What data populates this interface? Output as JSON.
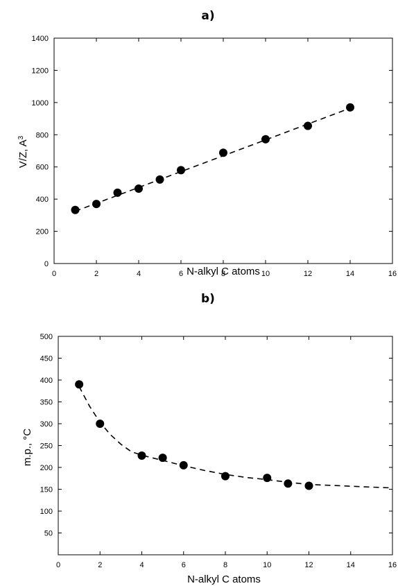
{
  "chart_data": [
    {
      "type": "scatter",
      "panel_label": "a)",
      "title": "",
      "xlabel": "N-alkyl C atoms",
      "ylabel_main": "V/Z, A",
      "ylabel_sup": "3",
      "xlim": [
        0,
        16
      ],
      "ylim": [
        0,
        1400
      ],
      "x_ticks": [
        0,
        2,
        4,
        6,
        8,
        10,
        12,
        14,
        16
      ],
      "y_ticks": [
        0,
        200,
        400,
        600,
        800,
        1000,
        1200,
        1400
      ],
      "x_tick_labels": [
        "0",
        "2",
        "4",
        "6",
        "8",
        "10",
        "12",
        "14",
        "16"
      ],
      "y_tick_labels": [
        "0",
        "200",
        "400",
        "600",
        "800",
        "1000",
        "1200",
        "1400"
      ],
      "points": [
        {
          "x": 1,
          "y": 333
        },
        {
          "x": 2,
          "y": 370
        },
        {
          "x": 3,
          "y": 440
        },
        {
          "x": 4,
          "y": 465
        },
        {
          "x": 5,
          "y": 522
        },
        {
          "x": 6,
          "y": 580
        },
        {
          "x": 8,
          "y": 688
        },
        {
          "x": 10,
          "y": 772
        },
        {
          "x": 12,
          "y": 855
        },
        {
          "x": 14,
          "y": 970
        }
      ],
      "fit": {
        "style": "dashed",
        "x": [
          1,
          14
        ],
        "y": [
          325,
          965
        ]
      },
      "grid": false,
      "legend": "none"
    },
    {
      "type": "scatter",
      "panel_label": "b)",
      "title": "",
      "xlabel": "N-alkyl C atoms",
      "ylabel": "m.p., °C",
      "xlim": [
        0,
        16
      ],
      "ylim": [
        0,
        500
      ],
      "x_ticks": [
        0,
        2,
        4,
        6,
        8,
        10,
        12,
        14,
        16
      ],
      "y_ticks": [
        50,
        100,
        150,
        200,
        250,
        300,
        350,
        400,
        450,
        500
      ],
      "x_tick_labels": [
        "0",
        "2",
        "4",
        "6",
        "8",
        "10",
        "12",
        "14",
        "16"
      ],
      "y_tick_labels": [
        "50",
        "100",
        "150",
        "200",
        "250",
        "300",
        "350",
        "400",
        "450",
        "500"
      ],
      "points": [
        {
          "x": 1,
          "y": 390
        },
        {
          "x": 2,
          "y": 300
        },
        {
          "x": 4,
          "y": 227
        },
        {
          "x": 5,
          "y": 222
        },
        {
          "x": 6,
          "y": 205
        },
        {
          "x": 8,
          "y": 180
        },
        {
          "x": 10,
          "y": 176
        },
        {
          "x": 11,
          "y": 163
        },
        {
          "x": 12,
          "y": 158
        }
      ],
      "fit": {
        "style": "dashed",
        "x": [
          1,
          1.5,
          2,
          2.5,
          3,
          3.5,
          4,
          5,
          6,
          7,
          8,
          9,
          10,
          11,
          12,
          13,
          14,
          15,
          16
        ],
        "y": [
          385,
          340,
          303,
          275,
          253,
          236,
          228,
          216,
          204,
          193,
          184,
          177,
          172,
          166,
          161,
          159,
          157,
          155,
          153
        ]
      },
      "grid": false,
      "legend": "none"
    }
  ]
}
